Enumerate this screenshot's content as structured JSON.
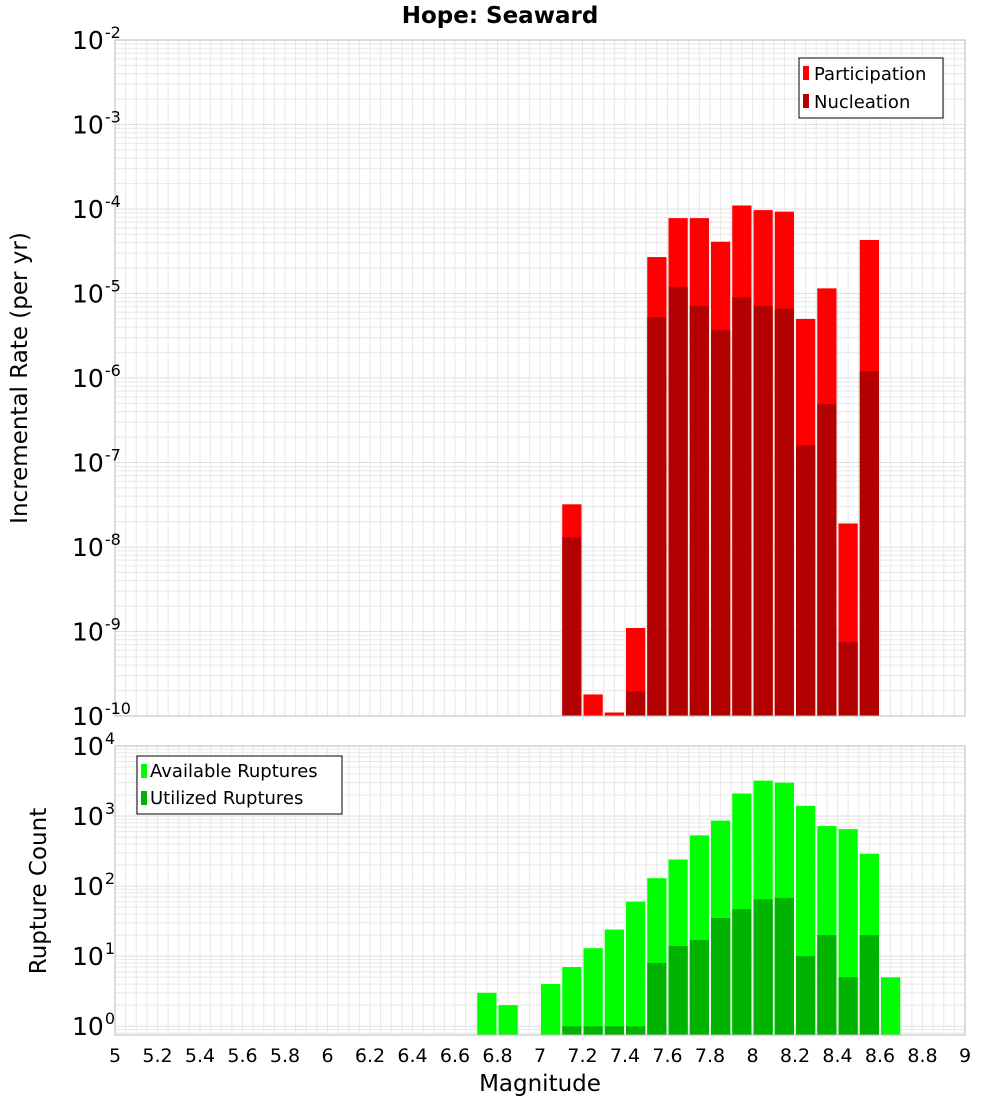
{
  "figure": {
    "title": "Hope: Seaward",
    "xlabel": "Magnitude"
  },
  "colors": {
    "participation": "#ff0000",
    "nucleation": "#b30000",
    "available": "#00ff00",
    "utilized": "#00b300",
    "grid": "#e8e8e8",
    "frame": "#bbbbbb"
  },
  "chart_data": [
    {
      "type": "bar",
      "scale": "log",
      "ylabel": "Incremental Rate (per yr)",
      "xlim": [
        5,
        9
      ],
      "ylim": [
        1e-10,
        0.01
      ],
      "ytick_exponents": [
        -2,
        -3,
        -4,
        -5,
        -6,
        -7,
        -8,
        -9,
        -10
      ],
      "legend_position": "top-right",
      "x": [
        7.15,
        7.25,
        7.35,
        7.45,
        7.55,
        7.65,
        7.75,
        7.85,
        7.95,
        8.05,
        8.15,
        8.25,
        8.35,
        8.45,
        8.55
      ],
      "series": [
        {
          "name": "Participation",
          "values": [
            3.2e-08,
            1.8e-10,
            1.1e-10,
            1.1e-09,
            2.7e-05,
            7.8e-05,
            7.8e-05,
            4.1e-05,
            0.00011,
            9.7e-05,
            9.3e-05,
            5e-06,
            1.15e-05,
            1.9e-08,
            4.3e-05
          ]
        },
        {
          "name": "Nucleation",
          "values": [
            1.3e-08,
            null,
            null,
            1.95e-10,
            5.2e-06,
            1.2e-05,
            7.1e-06,
            3.7e-06,
            9e-06,
            7.1e-06,
            6.6e-06,
            1.6e-07,
            4.9e-07,
            7.5e-10,
            1.2e-06
          ]
        }
      ]
    },
    {
      "type": "bar",
      "scale": "log",
      "ylabel": "Rupture Count",
      "xlim": [
        5,
        9
      ],
      "ylim": [
        0.75,
        10000
      ],
      "ytick_exponents": [
        4,
        3,
        2,
        1,
        0
      ],
      "xticks": [
        "5",
        "5.2",
        "5.4",
        "5.6",
        "5.8",
        "6",
        "6.2",
        "6.4",
        "6.6",
        "6.8",
        "7",
        "7.2",
        "7.4",
        "7.6",
        "7.8",
        "8",
        "8.2",
        "8.4",
        "8.6",
        "8.8",
        "9"
      ],
      "legend_position": "top-left",
      "x": [
        6.75,
        6.85,
        7.05,
        7.15,
        7.25,
        7.35,
        7.45,
        7.55,
        7.65,
        7.75,
        7.85,
        7.95,
        8.05,
        8.15,
        8.25,
        8.35,
        8.45,
        8.55,
        8.65
      ],
      "series": [
        {
          "name": "Available Ruptures",
          "values": [
            3,
            2,
            4,
            7,
            13,
            24,
            60,
            130,
            240,
            530,
            860,
            2100,
            3200,
            3000,
            1400,
            720,
            650,
            290,
            5
          ]
        },
        {
          "name": "Utilized Ruptures",
          "values": [
            null,
            null,
            null,
            1,
            1,
            1,
            1,
            8,
            14,
            17,
            35,
            47,
            65,
            68,
            10,
            20,
            5,
            20,
            null
          ]
        }
      ]
    }
  ]
}
